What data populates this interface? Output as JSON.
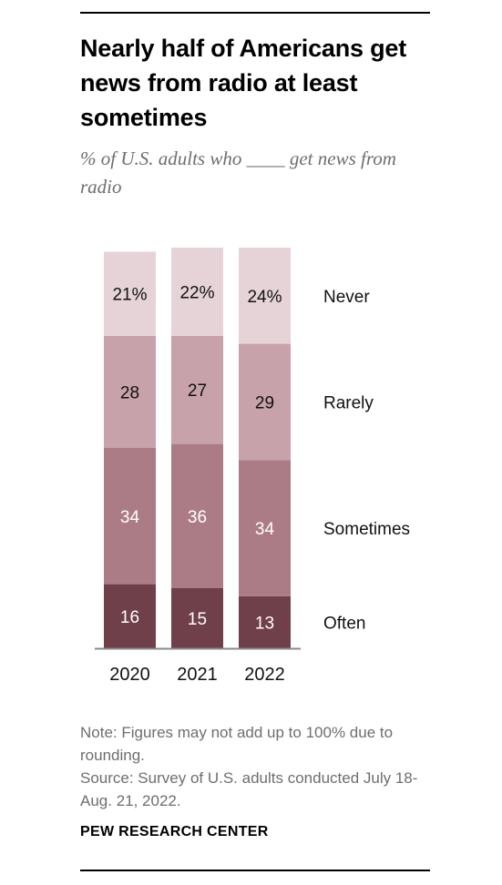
{
  "title": "Nearly half of Americans get news from radio at least sometimes",
  "subtitle": "% of U.S. adults who ____ get news from radio",
  "note": "Note: Figures may not add up to 100% due to rounding.",
  "source": "Source: Survey of U.S. adults conducted July 18-Aug. 21, 2022.",
  "footer": "PEW RESEARCH CENTER",
  "colors": {
    "Never": "#e6d3d8",
    "Rarely": "#c7a2aa",
    "Sometimes": "#ac7c86",
    "Often": "#6f3f4a"
  },
  "chart_data": {
    "type": "bar",
    "stacked": true,
    "orientation": "vertical",
    "categories": [
      "2020",
      "2021",
      "2022"
    ],
    "series": [
      {
        "name": "Often",
        "values": [
          16,
          15,
          13
        ],
        "labels": [
          "16",
          "15",
          "13"
        ]
      },
      {
        "name": "Sometimes",
        "values": [
          34,
          36,
          34
        ],
        "labels": [
          "34",
          "36",
          "34"
        ]
      },
      {
        "name": "Rarely",
        "values": [
          28,
          27,
          29
        ],
        "labels": [
          "28",
          "27",
          "29"
        ]
      },
      {
        "name": "Never",
        "values": [
          21,
          22,
          24
        ],
        "labels": [
          "21%",
          "22%",
          "24%"
        ]
      }
    ],
    "legend_placement": "right, inline with the 2022 bar",
    "grid": false
  }
}
